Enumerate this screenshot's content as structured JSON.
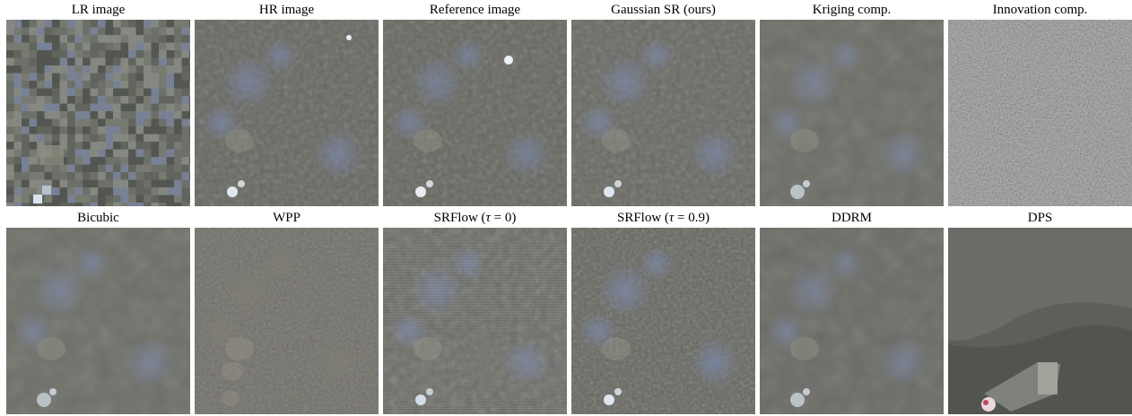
{
  "rows": [
    {
      "panels": [
        {
          "label": "LR image",
          "kind": "pixelated",
          "colors": {
            "base": "#6e7068",
            "dark": "#4c4f4a",
            "light": "#8c9088",
            "accent": "#7c87a3",
            "spot": "#d9e4ef"
          }
        },
        {
          "label": "HR image",
          "kind": "texture",
          "colors": {
            "base": "#676761",
            "dark": "#3f403c",
            "light": "#8e8f87",
            "accent": "#7a86a4",
            "spot": "#e6eef5"
          }
        },
        {
          "label": "Reference image",
          "kind": "texture",
          "colors": {
            "base": "#676760",
            "dark": "#41423d",
            "light": "#8f8f86",
            "accent": "#7986a1",
            "spot": "#eef3f8"
          }
        },
        {
          "label": "Gaussian SR (ours)",
          "kind": "texture",
          "colors": {
            "base": "#696963",
            "dark": "#40413d",
            "light": "#8e8f87",
            "accent": "#7b88a6",
            "spot": "#e2ecf4"
          }
        },
        {
          "label": "Kriging comp.",
          "kind": "blur",
          "colors": {
            "base": "#6c6d67",
            "dark": "#555651",
            "light": "#898a83",
            "accent": "#7d87a0",
            "spot": "#d7e2ec"
          }
        },
        {
          "label": "Innovation comp.",
          "kind": "noise",
          "colors": {
            "base": "#7d7d7b",
            "dark": "#5c5c5a",
            "light": "#a1a19e",
            "accent": "#7d7d7b",
            "spot": "#9a9a98"
          }
        }
      ]
    },
    {
      "panels": [
        {
          "label": "Bicubic",
          "kind": "blur",
          "colors": {
            "base": "#6d6e68",
            "dark": "#575853",
            "light": "#8a8b84",
            "accent": "#7e88a2",
            "spot": "#d6e1eb"
          }
        },
        {
          "label": "WPP",
          "kind": "fine",
          "colors": {
            "base": "#706f68",
            "dark": "#5a5953",
            "light": "#8b8a82",
            "accent": "#7f7e76",
            "spot": "#8f8d84"
          }
        },
        {
          "label": "SRFlow (τ = 0)",
          "label_prefix": "SRFlow (",
          "label_var": "τ",
          "label_suffix": " = 0)",
          "kind": "stripes",
          "colors": {
            "base": "#6b6b65",
            "dark": "#52534e",
            "light": "#8a8a83",
            "accent": "#7c87a2",
            "spot": "#d9e3ec"
          }
        },
        {
          "label": "SRFlow (τ = 0.9)",
          "label_prefix": "SRFlow (",
          "label_var": "τ",
          "label_suffix": " = 0.9)",
          "kind": "sharp",
          "colors": {
            "base": "#666660",
            "dark": "#34352f",
            "light": "#9c9d96",
            "accent": "#7b88a8",
            "spot": "#e4edf5"
          }
        },
        {
          "label": "DDRM",
          "kind": "blur",
          "colors": {
            "base": "#6a6b65",
            "dark": "#50514c",
            "light": "#888982",
            "accent": "#7c879f",
            "spot": "#d8e2ec"
          }
        },
        {
          "label": "DPS",
          "kind": "dps",
          "colors": {
            "base": "#5d605a",
            "dark": "#3e413c",
            "light": "#7a7e77",
            "accent": "#8d918a",
            "spot": "#e8d7dc"
          }
        }
      ]
    }
  ]
}
